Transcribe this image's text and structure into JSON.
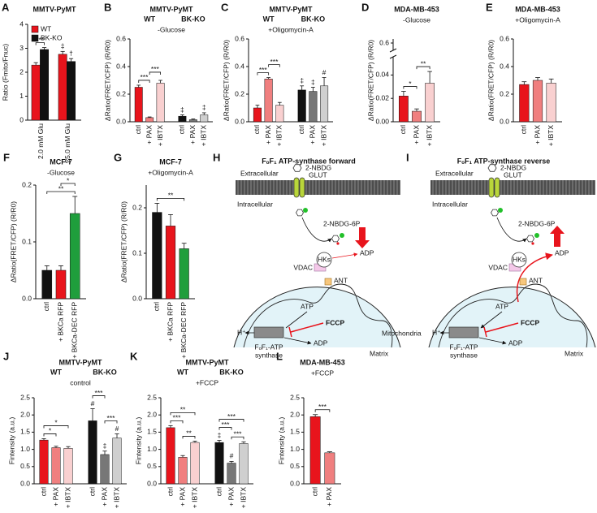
{
  "chart_data": [
    {
      "panel": "A",
      "type": "bar",
      "layout": "clustered",
      "title": "MMTV-PyMT",
      "ylabel": "Ratio (Fmito/Fnuc)",
      "categories": [
        "2.0 mM Glu",
        "25.0 mM Glu"
      ],
      "series": [
        {
          "name": "WT",
          "color": "#e8141c",
          "values": [
            2.3,
            2.75
          ],
          "errors": [
            0.1,
            0.12
          ],
          "marks": [
            null,
            "‡"
          ]
        },
        {
          "name": "BK-KO",
          "color": "#111111",
          "values": [
            2.95,
            2.45
          ],
          "errors": [
            0.08,
            0.12
          ],
          "marks": [
            null,
            "†"
          ]
        }
      ],
      "brackets": [
        {
          "text": "***",
          "from": [
            0,
            0
          ],
          "to": [
            1,
            0
          ]
        }
      ],
      "ylim": [
        0,
        4
      ],
      "yticks": [
        0,
        1,
        2,
        3,
        4
      ],
      "legend": "upper left"
    },
    {
      "panel": "B",
      "type": "bar",
      "layout": "blocks",
      "title": "MMTV-PyMT",
      "subtitle": "-Glucose",
      "ylabel": "ΔRatio(FRET/CFP) (R/R0)",
      "categories": [
        "ctrl",
        "+ PAX",
        "+ IBTX"
      ],
      "series": [
        {
          "name": "WT",
          "colors": [
            "#e8141c",
            "#f07f7f",
            "#f9d0d0"
          ],
          "values": [
            0.25,
            0.03,
            0.28
          ],
          "errors": [
            0.015,
            0.005,
            0.02
          ]
        },
        {
          "name": "BK-KO",
          "colors": [
            "#111111",
            "#777777",
            "#cfcfcf"
          ],
          "values": [
            0.04,
            0.015,
            0.05
          ],
          "errors": [
            0.01,
            0.005,
            0.015
          ],
          "marks": [
            "‡",
            null,
            "‡"
          ]
        }
      ],
      "brackets": [
        {
          "text": "***",
          "from": [
            0,
            0
          ],
          "to": [
            0,
            1
          ]
        },
        {
          "text": "***",
          "from": [
            0,
            1
          ],
          "to": [
            0,
            2
          ]
        }
      ],
      "ylim": [
        0,
        0.6
      ],
      "yticks": [
        {
          "value": 0,
          "label": "0.0"
        },
        {
          "value": 0.2,
          "label": "0.2"
        },
        {
          "value": 0.4,
          "label": "0.4"
        },
        {
          "value": 0.6,
          "label": "0.6"
        }
      ]
    },
    {
      "panel": "C",
      "type": "bar",
      "layout": "blocks",
      "title": "MMTV-PyMT",
      "subtitle": "+Oligomycin-A",
      "ylabel": "ΔRatio(FRET/CFP) (R/R0)",
      "categories": [
        "ctrl",
        "+ PAX",
        "+ IBTX"
      ],
      "series": [
        {
          "name": "WT",
          "colors": [
            "#e8141c",
            "#f07f7f",
            "#f9d0d0"
          ],
          "values": [
            0.1,
            0.31,
            0.12
          ],
          "errors": [
            0.02,
            0.01,
            0.02
          ]
        },
        {
          "name": "BK-KO",
          "colors": [
            "#111111",
            "#777777",
            "#cfcfcf"
          ],
          "values": [
            0.23,
            0.22,
            0.26
          ],
          "errors": [
            0.03,
            0.03,
            0.06
          ],
          "marks": [
            "‡",
            "‡",
            "#"
          ]
        }
      ],
      "brackets": [
        {
          "text": "***",
          "from": [
            0,
            0
          ],
          "to": [
            0,
            1
          ]
        },
        {
          "text": "***",
          "from": [
            0,
            1
          ],
          "to": [
            0,
            2
          ]
        }
      ],
      "ylim": [
        0,
        0.6
      ],
      "yticks": [
        {
          "value": 0,
          "label": "0.0"
        },
        {
          "value": 0.2,
          "label": "0.2"
        },
        {
          "value": 0.4,
          "label": "0.4"
        },
        {
          "value": 0.6,
          "label": "0.6"
        }
      ]
    },
    {
      "panel": "D",
      "type": "bar",
      "layout": "blocks",
      "title": "MDA-MB-453",
      "subtitle": "-Glucose",
      "ylabel": "ΔRatio(FRET/CFP) (R/R0)",
      "categories": [
        "ctrl",
        "+ PAX",
        "+ IBTX"
      ],
      "series": [
        {
          "colors": [
            "#e8141c",
            "#f07f7f",
            "#f9d0d0"
          ],
          "values": [
            0.022,
            0.009,
            0.033
          ],
          "errors": [
            0.004,
            0.002,
            0.01
          ]
        }
      ],
      "brackets": [
        {
          "text": "*",
          "from": [
            0,
            0
          ],
          "to": [
            0,
            1
          ]
        },
        {
          "text": "**",
          "from": [
            0,
            1
          ],
          "to": [
            0,
            2
          ]
        }
      ],
      "ylim": [
        0,
        0.05
      ],
      "yticks": [
        {
          "value": 0,
          "label": "0.00"
        },
        {
          "value": 0.02,
          "label": "0.02"
        },
        {
          "value": 0.04,
          "label": "0.04"
        }
      ],
      "break_ytick": {
        "value": 0.6,
        "label": "0.6"
      }
    },
    {
      "panel": "E",
      "type": "bar",
      "layout": "blocks",
      "title": "MDA-MB-453",
      "subtitle": "+Oligomycin-A",
      "ylabel": "ΔRatio(FRET/CFP) (R/R0)",
      "categories": [
        "ctrl",
        "+ PAX",
        "+ IBTX"
      ],
      "series": [
        {
          "colors": [
            "#e8141c",
            "#f07f7f",
            "#f9d0d0"
          ],
          "values": [
            0.27,
            0.3,
            0.28
          ],
          "errors": [
            0.02,
            0.02,
            0.03
          ]
        }
      ],
      "ylim": [
        0,
        0.6
      ],
      "yticks": [
        {
          "value": 0,
          "label": "0.0"
        },
        {
          "value": 0.2,
          "label": "0.2"
        },
        {
          "value": 0.4,
          "label": "0.4"
        },
        {
          "value": 0.6,
          "label": "0.6"
        }
      ]
    },
    {
      "panel": "F",
      "type": "bar",
      "layout": "blocks",
      "title": "MCF-7",
      "subtitle": "-Glucose",
      "ylabel": "ΔRatio(FRET/CFP) (R/R0)",
      "categories": [
        "ctrl",
        "+ BKCa RFP",
        "+ BKCa-DEC RFP"
      ],
      "series": [
        {
          "colors": [
            "#111111",
            "#e8141c",
            "#1f9e3c"
          ],
          "values": [
            0.05,
            0.05,
            0.15
          ],
          "errors": [
            0.008,
            0.008,
            0.03
          ]
        }
      ],
      "brackets": [
        {
          "text": "**",
          "from": [
            0,
            0
          ],
          "to": [
            0,
            2
          ]
        },
        {
          "text": "*",
          "from": [
            0,
            1
          ],
          "to": [
            0,
            2
          ]
        }
      ],
      "ylim": [
        0,
        0.2
      ],
      "yticks": [
        {
          "value": 0,
          "label": "0.0"
        },
        0.1,
        0.2
      ]
    },
    {
      "panel": "G",
      "type": "bar",
      "layout": "blocks",
      "title": "MCF-7",
      "subtitle": "+Oligomycin-A",
      "ylabel": "ΔRatio(FRET/CFP) (R/R0)",
      "categories": [
        "ctrl",
        "+ BKCa RFP",
        "+ BKCa-DEC RFP"
      ],
      "series": [
        {
          "colors": [
            "#111111",
            "#e8141c",
            "#1f9e3c"
          ],
          "values": [
            0.19,
            0.16,
            0.11
          ],
          "errors": [
            0.02,
            0.025,
            0.012
          ]
        }
      ],
      "brackets": [
        {
          "text": "**",
          "from": [
            0,
            0
          ],
          "to": [
            0,
            2
          ]
        }
      ],
      "ylim": [
        0,
        0.25
      ],
      "yticks": [
        {
          "value": 0,
          "label": "0.0"
        },
        0.1,
        0.2
      ]
    },
    {
      "panel": "J",
      "type": "bar",
      "layout": "blocks",
      "title": "MMTV-PyMT",
      "subtitle": "control",
      "ylabel": "Fintensity (a.u.)",
      "categories": [
        "ctrl",
        "+ PAX",
        "+ IBTX"
      ],
      "series": [
        {
          "name": "WT",
          "colors": [
            "#e8141c",
            "#f07f7f",
            "#f9d0d0"
          ],
          "values": [
            1.27,
            1.05,
            1.03
          ],
          "errors": [
            0.04,
            0.04,
            0.05
          ]
        },
        {
          "name": "BK-KO",
          "colors": [
            "#111111",
            "#777777",
            "#cfcfcf"
          ],
          "values": [
            1.83,
            0.85,
            1.33
          ],
          "errors": [
            0.35,
            0.1,
            0.12
          ],
          "marks": [
            "#",
            "‡",
            "#"
          ]
        }
      ],
      "brackets": [
        {
          "text": "*",
          "from": [
            0,
            0
          ],
          "to": [
            0,
            1
          ]
        },
        {
          "text": "*",
          "from": [
            0,
            0
          ],
          "to": [
            0,
            2
          ]
        },
        {
          "text": "***",
          "from": [
            1,
            1
          ],
          "to": [
            1,
            2
          ]
        },
        {
          "text": "***",
          "from": [
            1,
            0
          ],
          "to": [
            1,
            1
          ]
        }
      ],
      "ylim": [
        0,
        2.5
      ],
      "yticks": [
        {
          "value": 0,
          "label": "0.0"
        },
        {
          "value": 0.5,
          "label": "0.5"
        },
        {
          "value": 1,
          "label": "1.0"
        },
        {
          "value": 1.5,
          "label": "1.5"
        },
        {
          "value": 2,
          "label": "2.0"
        },
        {
          "value": 2.5,
          "label": "2.5"
        }
      ]
    },
    {
      "panel": "K",
      "type": "bar",
      "layout": "blocks",
      "title": "MMTV-PyMT",
      "subtitle": "+FCCP",
      "ylabel": "Fintensity (a.u.)",
      "categories": [
        "ctrl",
        "+ PAX",
        "+ IBTX"
      ],
      "series": [
        {
          "name": "WT",
          "colors": [
            "#e8141c",
            "#f07f7f",
            "#f9d0d0"
          ],
          "values": [
            1.63,
            0.77,
            1.2
          ],
          "errors": [
            0.06,
            0.05,
            0.04
          ]
        },
        {
          "name": "BK-KO",
          "colors": [
            "#111111",
            "#777777",
            "#cfcfcf"
          ],
          "values": [
            1.2,
            0.6,
            1.17
          ],
          "errors": [
            0.06,
            0.05,
            0.05
          ],
          "marks": [
            "‡",
            "#",
            null
          ]
        }
      ],
      "brackets": [
        {
          "text": "**",
          "from": [
            0,
            1
          ],
          "to": [
            0,
            2
          ]
        },
        {
          "text": "***",
          "from": [
            0,
            0
          ],
          "to": [
            0,
            1
          ]
        },
        {
          "text": "**",
          "from": [
            0,
            0
          ],
          "to": [
            0,
            2
          ]
        },
        {
          "text": "***",
          "from": [
            1,
            1
          ],
          "to": [
            1,
            2
          ]
        },
        {
          "text": "***",
          "from": [
            1,
            0
          ],
          "to": [
            1,
            1
          ]
        },
        {
          "text": "***",
          "from": [
            1,
            0
          ],
          "to": [
            1,
            2
          ]
        }
      ],
      "ylim": [
        0,
        2.5
      ],
      "yticks": [
        {
          "value": 0,
          "label": "0.0"
        },
        {
          "value": 0.5,
          "label": "0.5"
        },
        {
          "value": 1,
          "label": "1.0"
        },
        {
          "value": 1.5,
          "label": "1.5"
        },
        {
          "value": 2,
          "label": "2.0"
        },
        {
          "value": 2.5,
          "label": "2.5"
        }
      ]
    },
    {
      "panel": "L",
      "type": "bar",
      "layout": "blocks",
      "title": "MDA-MB-453",
      "subtitle": "+FCCP",
      "ylabel": "Fintensity (a.u.)",
      "categories": [
        "ctrl",
        "+ PAX"
      ],
      "series": [
        {
          "colors": [
            "#e8141c",
            "#f07f7f"
          ],
          "values": [
            1.95,
            0.9
          ],
          "errors": [
            0.06,
            0.03
          ]
        }
      ],
      "brackets": [
        {
          "text": "***",
          "from": [
            0,
            0
          ],
          "to": [
            0,
            1
          ]
        }
      ],
      "ylim": [
        0,
        2.5
      ],
      "yticks": [
        {
          "value": 0,
          "label": "0.0"
        },
        {
          "value": 0.5,
          "label": "0.5"
        },
        {
          "value": 1,
          "label": "1.0"
        },
        {
          "value": 1.5,
          "label": "1.5"
        },
        {
          "value": 2,
          "label": "2.0"
        },
        {
          "value": 2.5,
          "label": "2.5"
        }
      ]
    }
  ],
  "diagrams": [
    {
      "panel": "H",
      "title": "FₒF₁ ATP-synthase forward",
      "glucose": "2-NBDG",
      "outside": "Extracellular",
      "transporter": "GLUT",
      "inside": "Intracellular",
      "product": "2-NBDG-6P",
      "kinase": "HKs",
      "adp_out": "ADP",
      "channel": "VDAC",
      "translocase": "ANT",
      "atp": "ATP",
      "proton": "H⁺",
      "uncoupler": "FCCP",
      "adp_in": "ADP",
      "synthase": [
        "FₒF₁-ATP",
        "synthase"
      ],
      "matrix": "Matrix",
      "organelle": "Mitochondria"
    },
    {
      "panel": "I",
      "title": "FₒF₁ ATP-synthase reverse",
      "glucose": "2-NBDG",
      "outside": "Extracellular",
      "transporter": "GLUT",
      "inside": "Intracellular",
      "product": "2-NBDG-6P",
      "kinase": "HKs",
      "adp_out": "ADP",
      "channel": "VDAC",
      "translocase": "ANT",
      "atp": "ATP",
      "proton": "H⁺",
      "uncoupler": "FCCP",
      "adp_in": "ADP",
      "synthase": [
        "FₒF₁-ATP",
        "synthase"
      ],
      "matrix": "Matrix"
    }
  ]
}
